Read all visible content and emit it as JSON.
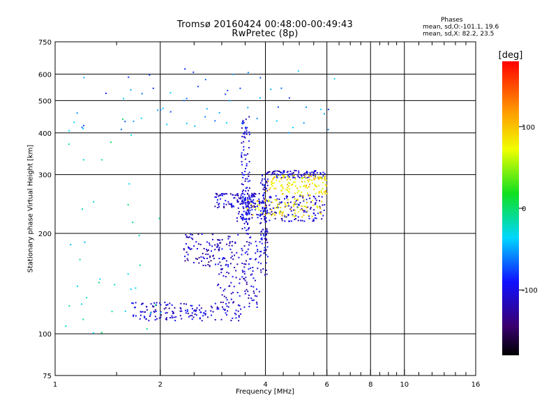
{
  "chart_data": {
    "type": "scatter",
    "title": "Tromsø 20160424 00:48:00-00:49:43",
    "subtitle": "RwPretec (8p)",
    "xlabel": "Frequency [MHz]",
    "ylabel": "Stationary phase Virtual Height [km]",
    "x_scale": "log",
    "y_scale": "log",
    "xlim": [
      1,
      16
    ],
    "ylim": [
      75,
      750
    ],
    "x_ticks": [
      1,
      2,
      4,
      6,
      8,
      10,
      16
    ],
    "x_tick_labels": [
      "1",
      "2",
      "4",
      "6",
      "8",
      "10",
      "16"
    ],
    "x_minor_ticks": [
      1.5,
      2.5,
      3,
      3.5,
      4.5,
      5,
      5.5,
      6.5,
      7,
      7.5,
      8.5,
      9,
      9.5,
      11,
      12,
      13,
      14,
      15
    ],
    "y_ticks": [
      75,
      100,
      200,
      300,
      400,
      500,
      600,
      750
    ],
    "y_tick_labels": [
      "75",
      "100",
      "200",
      "300",
      "400",
      "500",
      "600",
      "750"
    ],
    "grid": true,
    "phases": {
      "header": "Phases",
      "o_line": "mean, sd,O:-101.1, 19.6",
      "x_line": "mean, sd,X:  82.2, 23.5"
    },
    "colorbar": {
      "label": "[deg]",
      "ticks": [
        100,
        0,
        -100
      ],
      "tick_labels": [
        "100",
        "0",
        "-100"
      ],
      "range": [
        -180,
        180
      ]
    },
    "clusters": [
      {
        "name": "E-layer lower trace",
        "x_range": [
          1.65,
          3.4
        ],
        "y_range": [
          110,
          125
        ],
        "phase_deg": -110,
        "approx_points": 150
      },
      {
        "name": "F1 lower trace",
        "x_range": [
          2.9,
          3.85
        ],
        "y_range": [
          120,
          200
        ],
        "phase_deg": -110,
        "approx_points": 160
      },
      {
        "name": "F cusp vertical",
        "x_range": [
          3.85,
          4.05
        ],
        "y_range": [
          150,
          300
        ],
        "phase_deg": -105,
        "approx_points": 90
      },
      {
        "name": "O-mode F trace ~300 km",
        "x_range": [
          4.0,
          5.9
        ],
        "y_range": [
          295,
          310
        ],
        "phase_deg": -110,
        "approx_points": 100
      },
      {
        "name": "O-mode F trace ~225 km",
        "x_range": [
          3.3,
          5.9
        ],
        "y_range": [
          218,
          262
        ],
        "phase_deg": -105,
        "approx_points": 190
      },
      {
        "name": "O-mode F trace ~250 km",
        "x_range": [
          2.85,
          4.0
        ],
        "y_range": [
          240,
          265
        ],
        "phase_deg": -110,
        "approx_points": 110
      },
      {
        "name": "X-mode trace ~285 km",
        "x_range": [
          4.0,
          6.0
        ],
        "y_range": [
          260,
          300
        ],
        "phase_deg": 85,
        "approx_points": 130
      },
      {
        "name": "X-mode trace ~240 km",
        "x_range": [
          3.5,
          5.8
        ],
        "y_range": [
          225,
          255
        ],
        "phase_deg": 85,
        "approx_points": 90
      },
      {
        "name": "Vertical spread at 3.5 MHz",
        "x_range": [
          3.4,
          3.6
        ],
        "y_range": [
          200,
          450
        ],
        "phase_deg": -105,
        "approx_points": 120
      },
      {
        "name": "Mid cluster 2.3-2.9 MHz",
        "x_range": [
          2.3,
          2.95
        ],
        "y_range": [
          160,
          200
        ],
        "phase_deg": -115,
        "approx_points": 80
      },
      {
        "name": "Scattered high returns",
        "x_range": [
          1.1,
          6.6
        ],
        "y_range": [
          400,
          630
        ],
        "phase_deg": -60,
        "approx_points": 60
      },
      {
        "name": "Scattered low-frequency noise",
        "x_range": [
          1.05,
          2.0
        ],
        "y_range": [
          100,
          450
        ],
        "phase_deg": -20,
        "approx_points": 40
      }
    ]
  }
}
